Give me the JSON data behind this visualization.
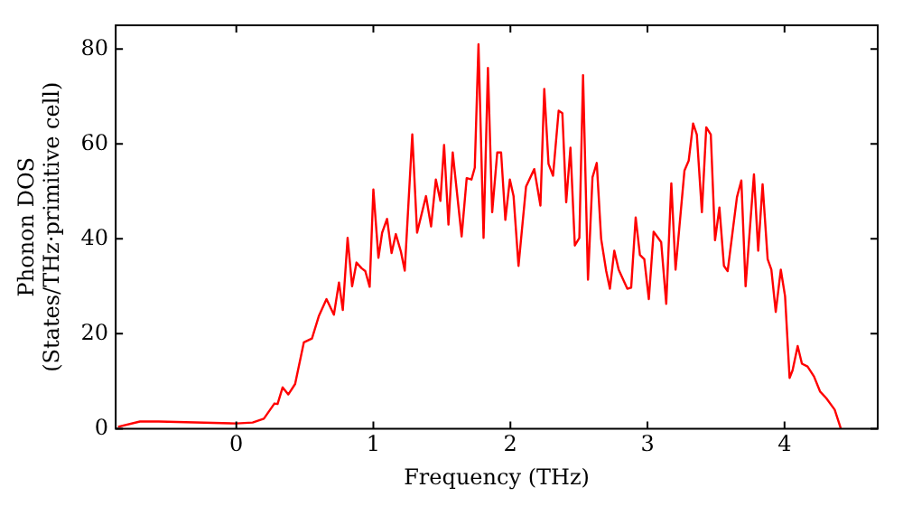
{
  "chart_data": {
    "type": "line",
    "xlabel": "Frequency (THz)",
    "ylabel": "Phonon DOS\n(States/THz·primitive cell)",
    "x": [
      -0.863,
      -0.703,
      -0.566,
      0,
      0.119,
      0.201,
      0.278,
      0.301,
      0.338,
      0.379,
      0.429,
      0.493,
      0.552,
      0.603,
      0.658,
      0.712,
      0.749,
      0.777,
      0.812,
      0.845,
      0.877,
      0.914,
      0.941,
      0.973,
      1.0,
      1.037,
      1.064,
      1.1,
      1.133,
      1.164,
      1.201,
      1.229,
      1.284,
      1.319,
      1.384,
      1.421,
      1.456,
      1.489,
      1.516,
      1.548,
      1.579,
      1.644,
      1.681,
      1.716,
      1.74,
      1.767,
      1.804,
      1.836,
      1.867,
      1.904,
      1.932,
      1.963,
      1.996,
      2.023,
      2.059,
      2.114,
      2.174,
      2.219,
      2.247,
      2.278,
      2.311,
      2.352,
      2.379,
      2.407,
      2.438,
      2.47,
      2.503,
      2.53,
      2.566,
      2.599,
      2.63,
      2.662,
      2.699,
      2.726,
      2.758,
      2.79,
      2.853,
      2.881,
      2.914,
      2.945,
      2.977,
      3.01,
      3.045,
      3.1,
      3.137,
      3.174,
      3.205,
      3.27,
      3.301,
      3.333,
      3.36,
      3.397,
      3.429,
      3.462,
      3.493,
      3.525,
      3.558,
      3.585,
      3.653,
      3.685,
      3.716,
      3.777,
      3.808,
      3.84,
      3.877,
      3.904,
      3.936,
      3.973,
      4.004,
      4.037,
      4.059,
      4.096,
      4.127,
      4.168,
      4.215,
      4.26,
      4.305,
      4.366,
      4.411
    ],
    "series": [
      {
        "color": "#ff0000",
        "values": [
          0.4,
          1.5,
          1.5,
          1.1,
          1.3,
          2.1,
          5.3,
          5.2,
          8.7,
          7.2,
          9.4,
          18.2,
          19,
          23.8,
          27.3,
          24,
          30.8,
          25,
          40.2,
          30,
          35,
          33.8,
          33.2,
          29.9,
          50.4,
          36,
          41.3,
          44.2,
          37,
          41,
          37.3,
          33.3,
          62,
          41.3,
          49,
          42.6,
          52.5,
          48,
          59.8,
          43,
          58.2,
          40.5,
          52.8,
          52.5,
          55,
          81,
          40.2,
          76,
          45.6,
          58.2,
          58.2,
          44,
          52.5,
          49,
          34.3,
          51,
          54.7,
          47,
          71.6,
          55.8,
          53.3,
          67,
          66.5,
          47.7,
          59.2,
          38.6,
          40.2,
          74.5,
          31.4,
          53,
          56,
          40,
          33.2,
          29.5,
          37.5,
          33.5,
          29.5,
          29.7,
          44.5,
          36.6,
          35.7,
          27.3,
          41.5,
          39.3,
          26.3,
          51.7,
          33.5,
          54.4,
          56.5,
          64.3,
          62,
          45.6,
          63.5,
          62,
          39.7,
          46.6,
          34.3,
          33.2,
          48.8,
          52.3,
          30,
          53.6,
          37.5,
          51.5,
          35.7,
          33.5,
          24.6,
          33.5,
          27.9,
          10.7,
          12.3,
          17.4,
          13.7,
          13.1,
          11,
          7.8,
          6.4,
          4,
          0
        ]
      }
    ],
    "xlim": [
      -0.88,
      4.68
    ],
    "ylim": [
      0,
      85
    ],
    "xticks": [
      0,
      1,
      2,
      3,
      4
    ],
    "yticks": [
      0,
      20,
      40,
      60,
      80
    ],
    "grid": false,
    "legend": false,
    "marker": "none",
    "line_style": "solid"
  }
}
